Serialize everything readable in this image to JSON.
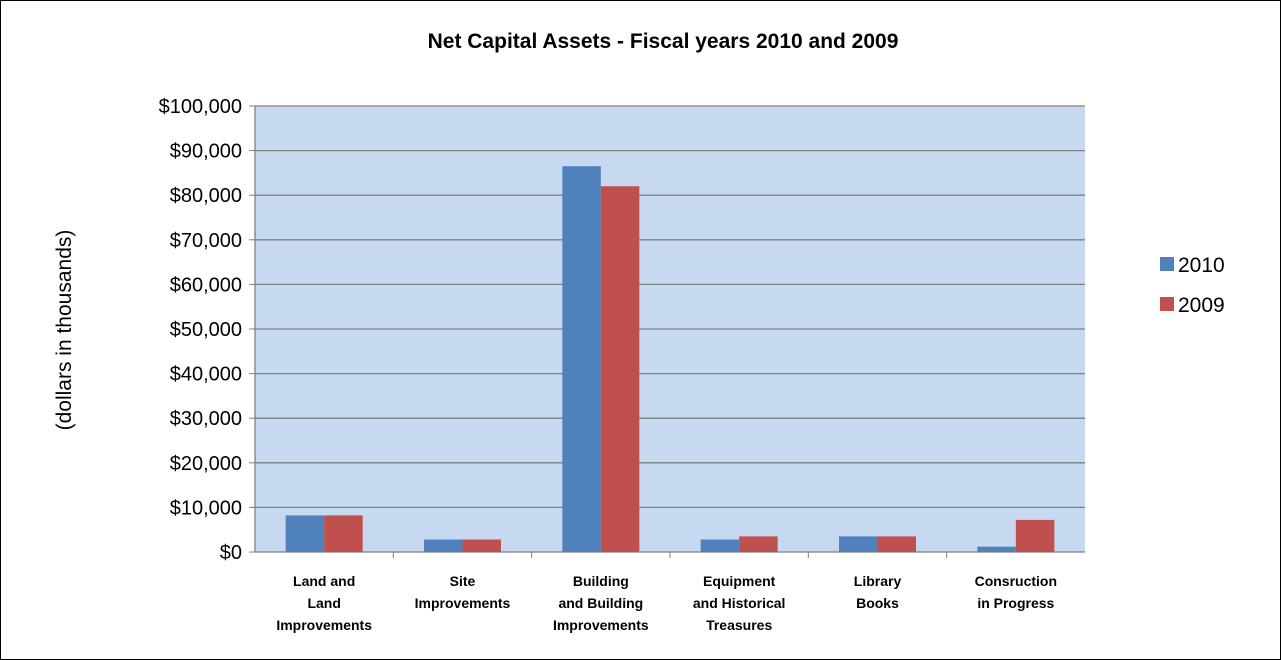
{
  "chart_data": {
    "type": "bar",
    "title": "Net Capital Assets  - Fiscal years 2010 and 2009",
    "ylabel": "(dollars in thousands)",
    "xlabel": "",
    "ylim": [
      0,
      100000
    ],
    "yticks": [
      "$0",
      "$10,000",
      "$20,000",
      "$30,000",
      "$40,000",
      "$50,000",
      "$60,000",
      "$70,000",
      "$80,000",
      "$90,000",
      "$100,000"
    ],
    "grid": true,
    "legend_position": "right",
    "categories": [
      [
        "Land and",
        "Land",
        "Improvements"
      ],
      [
        "Site",
        "Improvements"
      ],
      [
        "Building",
        "and Building",
        "Improvements"
      ],
      [
        "Equipment",
        "and Historical",
        "Treasures"
      ],
      [
        "Library",
        "Books"
      ],
      [
        "Consruction",
        "in Progress"
      ]
    ],
    "series": [
      {
        "name": "2010",
        "color": "#4F81BD",
        "values": [
          8200,
          2800,
          86500,
          2800,
          3500,
          1200
        ]
      },
      {
        "name": "2009",
        "color": "#C0504D",
        "values": [
          8200,
          2800,
          82000,
          3500,
          3500,
          7200
        ]
      }
    ],
    "colors": {
      "plot_bg": "#C6D9F1",
      "grid": "#808080",
      "axis": "#808080"
    }
  }
}
